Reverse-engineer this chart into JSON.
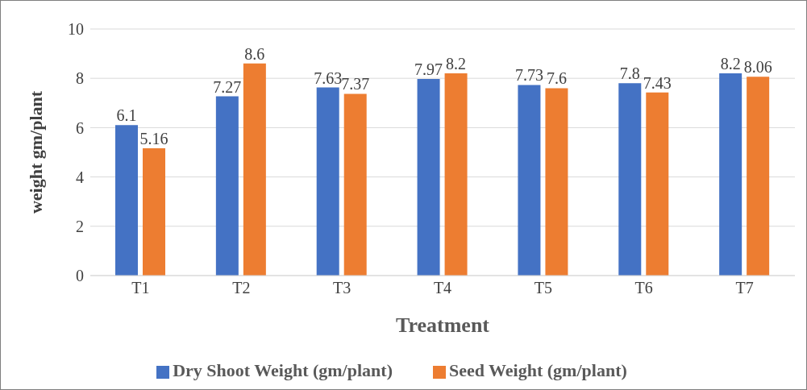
{
  "chart_data": {
    "type": "bar",
    "xlabel": "Treatment",
    "ylabel": "weight gm/plant",
    "categories": [
      "T1",
      "T2",
      "T3",
      "T4",
      "T5",
      "T6",
      "T7"
    ],
    "series": [
      {
        "name": "Dry Shoot Weight (gm/plant)",
        "color": "#4472c4",
        "values": [
          6.1,
          7.27,
          7.63,
          7.97,
          7.73,
          7.8,
          8.2
        ]
      },
      {
        "name": "Seed Weight (gm/plant)",
        "color": "#ed7d31",
        "values": [
          5.16,
          8.6,
          7.37,
          8.2,
          7.6,
          7.43,
          8.06
        ]
      }
    ],
    "ylim": [
      0,
      10
    ],
    "yticks": [
      0,
      2,
      4,
      6,
      8,
      10
    ],
    "grid": "y",
    "legend": "bottom",
    "data_labels": true
  }
}
